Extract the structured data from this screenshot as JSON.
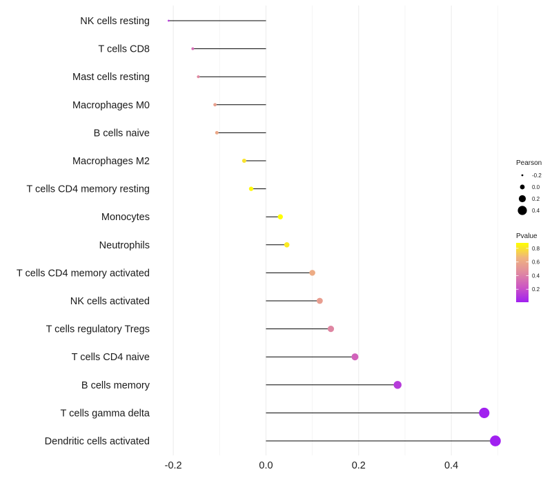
{
  "chart_data": {
    "type": "lollipop",
    "title": "",
    "xlabel": "",
    "ylabel": "",
    "xlim": [
      -0.23,
      0.51
    ],
    "x_ticks": [
      -0.2,
      0.0,
      0.2,
      0.4
    ],
    "x_tick_labels": [
      "-0.2",
      "0.0",
      "0.2",
      "0.4"
    ],
    "grid": true,
    "legend_position": "right",
    "series": [
      {
        "label": "NK cells resting",
        "pearson": -0.21,
        "pvalue": 0.12
      },
      {
        "label": "T cells CD8",
        "pearson": -0.158,
        "pvalue": 0.32
      },
      {
        "label": "Mast cells resting",
        "pearson": -0.146,
        "pvalue": 0.44
      },
      {
        "label": "Macrophages M0",
        "pearson": -0.11,
        "pvalue": 0.56
      },
      {
        "label": "B cells naive",
        "pearson": -0.106,
        "pvalue": 0.6
      },
      {
        "label": "Macrophages M2",
        "pearson": -0.047,
        "pvalue": 0.8
      },
      {
        "label": "T cells CD4 memory resting",
        "pearson": -0.032,
        "pvalue": 0.86
      },
      {
        "label": "Monocytes",
        "pearson": 0.031,
        "pvalue": 0.88
      },
      {
        "label": "Neutrophils",
        "pearson": 0.045,
        "pvalue": 0.82
      },
      {
        "label": "T cells CD4 memory activated",
        "pearson": 0.1,
        "pvalue": 0.62
      },
      {
        "label": "NK cells activated",
        "pearson": 0.116,
        "pvalue": 0.55
      },
      {
        "label": "T cells regulatory  Tregs ",
        "pearson": 0.14,
        "pvalue": 0.43
      },
      {
        "label": "T cells CD4 naive",
        "pearson": 0.192,
        "pvalue": 0.28
      },
      {
        "label": "B cells memory",
        "pearson": 0.284,
        "pvalue": 0.12
      },
      {
        "label": "T cells gamma delta",
        "pearson": 0.471,
        "pvalue": 0.015
      },
      {
        "label": "Dendritic cells activated",
        "pearson": 0.495,
        "pvalue": 0.01
      }
    ],
    "legend": {
      "size_title": "Pearson",
      "size_values": [
        -0.2,
        0.0,
        0.2,
        0.4
      ],
      "size_labels": [
        "-0.2",
        "0.0",
        "0.2",
        "0.4"
      ],
      "color_title": "Pvalue",
      "color_range": [
        0.01,
        0.88
      ],
      "color_ticks": [
        0.2,
        0.4,
        0.6,
        0.8
      ],
      "color_tick_labels": [
        "0.2",
        "0.4",
        "0.6",
        "0.8"
      ],
      "color_stops": [
        "#a020f0",
        "#cc55c4",
        "#e08aa0",
        "#f0b47e",
        "#ffff00"
      ]
    }
  }
}
